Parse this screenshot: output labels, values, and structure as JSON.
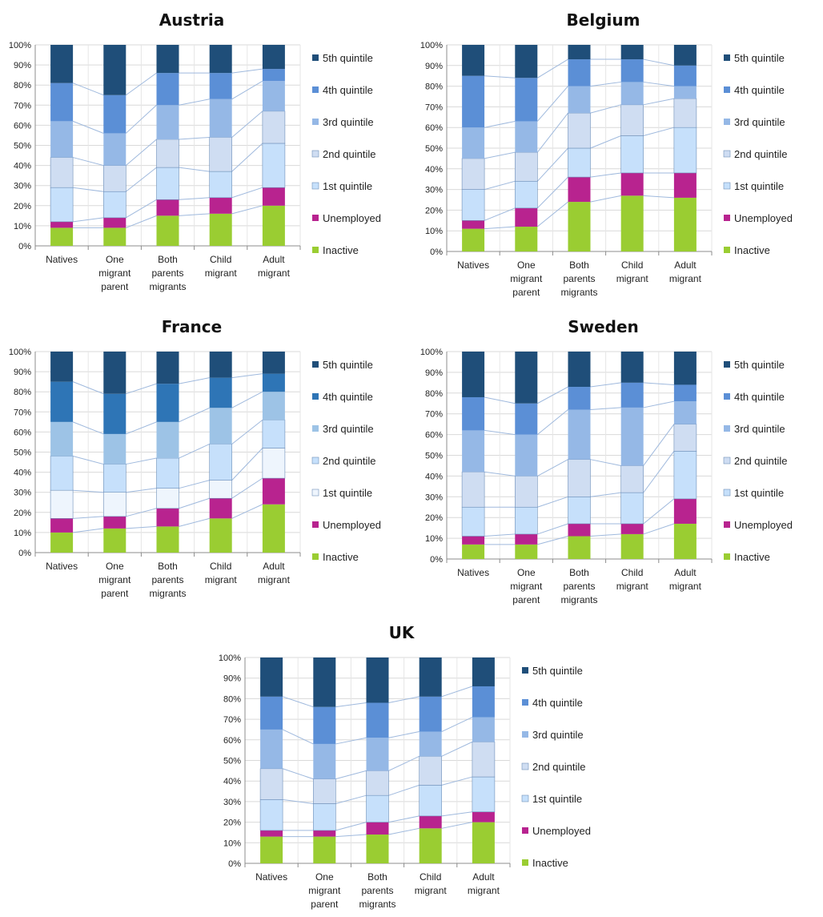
{
  "series_names": [
    "Inactive",
    "Unemployed",
    "1st quintile",
    "2nd quintile",
    "3rd quintile",
    "4th quintile",
    "5th quintile"
  ],
  "categories": [
    [
      "Natives"
    ],
    [
      "One",
      "migrant",
      "parent"
    ],
    [
      "Both",
      "parents",
      "migrants"
    ],
    [
      "Child",
      "migrant"
    ],
    [
      "Adult",
      "migrant"
    ]
  ],
  "y_ticks": [
    "0%",
    "10%",
    "20%",
    "30%",
    "40%",
    "50%",
    "60%",
    "70%",
    "80%",
    "90%",
    "100%"
  ],
  "chart_data": [
    {
      "type": "bar",
      "stacked": true,
      "title": "Austria",
      "ylim": [
        0,
        100
      ],
      "colors": [
        "#9acd32",
        "#b8238f",
        "#c6e0fb",
        "#cfddf2",
        "#95b8e6",
        "#5b8fd6",
        "#1f4e79"
      ],
      "categories": [
        "Natives",
        "One migrant parent",
        "Both parents migrants",
        "Child migrant",
        "Adult migrant"
      ],
      "series": [
        {
          "name": "Inactive",
          "values": [
            9,
            9,
            15,
            16,
            20
          ]
        },
        {
          "name": "Unemployed",
          "values": [
            3,
            5,
            8,
            8,
            9
          ]
        },
        {
          "name": "1st quintile",
          "values": [
            17,
            13,
            16,
            13,
            22
          ]
        },
        {
          "name": "2nd quintile",
          "values": [
            15,
            13,
            14,
            17,
            16
          ]
        },
        {
          "name": "3rd quintile",
          "values": [
            18,
            16,
            17,
            19,
            15
          ]
        },
        {
          "name": "4th quintile",
          "values": [
            19,
            19,
            16,
            13,
            6
          ]
        },
        {
          "name": "5th quintile",
          "values": [
            19,
            25,
            14,
            14,
            12
          ]
        }
      ]
    },
    {
      "type": "bar",
      "stacked": true,
      "title": "Belgium",
      "ylim": [
        0,
        100
      ],
      "colors": [
        "#9acd32",
        "#b8238f",
        "#c6e0fb",
        "#cfddf2",
        "#95b8e6",
        "#5b8fd6",
        "#1f4e79"
      ],
      "categories": [
        "Natives",
        "One migrant parent",
        "Both parents migrants",
        "Child migrant",
        "Adult migrant"
      ],
      "series": [
        {
          "name": "Inactive",
          "values": [
            11,
            12,
            24,
            27,
            26
          ]
        },
        {
          "name": "Unemployed",
          "values": [
            4,
            9,
            12,
            11,
            12
          ]
        },
        {
          "name": "1st quintile",
          "values": [
            15,
            13,
            14,
            18,
            22
          ]
        },
        {
          "name": "2nd quintile",
          "values": [
            15,
            14,
            17,
            15,
            14
          ]
        },
        {
          "name": "3rd quintile",
          "values": [
            15,
            15,
            13,
            11,
            6
          ]
        },
        {
          "name": "4th quintile",
          "values": [
            25,
            21,
            13,
            11,
            10
          ]
        },
        {
          "name": "5th quintile",
          "values": [
            15,
            16,
            7,
            7,
            10
          ]
        }
      ]
    },
    {
      "type": "bar",
      "stacked": true,
      "title": "France",
      "ylim": [
        0,
        100
      ],
      "colors": [
        "#9acd32",
        "#b8238f",
        "#eef5fd",
        "#c6e0fb",
        "#9dc3e6",
        "#2e75b6",
        "#1f4e79"
      ],
      "categories": [
        "Natives",
        "One migrant parent",
        "Both parents migrants",
        "Child migrant",
        "Adult migrant"
      ],
      "series": [
        {
          "name": "Inactive",
          "values": [
            10,
            12,
            13,
            17,
            24
          ]
        },
        {
          "name": "Unemployed",
          "values": [
            7,
            6,
            9,
            10,
            13
          ]
        },
        {
          "name": "1st quintile",
          "values": [
            14,
            12,
            10,
            9,
            15
          ]
        },
        {
          "name": "2nd quintile",
          "values": [
            17,
            14,
            15,
            18,
            14
          ]
        },
        {
          "name": "3rd quintile",
          "values": [
            17,
            15,
            18,
            18,
            14
          ]
        },
        {
          "name": "4th quintile",
          "values": [
            20,
            20,
            19,
            15,
            9
          ]
        },
        {
          "name": "5th quintile",
          "values": [
            15,
            21,
            16,
            13,
            11
          ]
        }
      ]
    },
    {
      "type": "bar",
      "stacked": true,
      "title": "Sweden",
      "ylim": [
        0,
        100
      ],
      "colors": [
        "#9acd32",
        "#b8238f",
        "#c6e0fb",
        "#cfddf2",
        "#95b8e6",
        "#5b8fd6",
        "#1f4e79"
      ],
      "categories": [
        "Natives",
        "One migrant parent",
        "Both parents migrants",
        "Child migrant",
        "Adult migrant"
      ],
      "series": [
        {
          "name": "Inactive",
          "values": [
            7,
            7,
            11,
            12,
            17
          ]
        },
        {
          "name": "Unemployed",
          "values": [
            4,
            5,
            6,
            5,
            12
          ]
        },
        {
          "name": "1st quintile",
          "values": [
            14,
            13,
            13,
            15,
            23
          ]
        },
        {
          "name": "2nd quintile",
          "values": [
            17,
            15,
            18,
            13,
            13
          ]
        },
        {
          "name": "3rd quintile",
          "values": [
            20,
            20,
            24,
            28,
            11
          ]
        },
        {
          "name": "4th quintile",
          "values": [
            16,
            15,
            11,
            12,
            8
          ]
        },
        {
          "name": "5th quintile",
          "values": [
            22,
            25,
            17,
            15,
            16
          ]
        }
      ]
    },
    {
      "type": "bar",
      "stacked": true,
      "title": "UK",
      "ylim": [
        0,
        100
      ],
      "colors": [
        "#9acd32",
        "#b8238f",
        "#c6e0fb",
        "#cfddf2",
        "#95b8e6",
        "#5b8fd6",
        "#1f4e79"
      ],
      "categories": [
        "Natives",
        "One migrant parent",
        "Both parents migrants",
        "Child migrant",
        "Adult migrant"
      ],
      "series": [
        {
          "name": "Inactive",
          "values": [
            13,
            13,
            14,
            17,
            20
          ]
        },
        {
          "name": "Unemployed",
          "values": [
            3,
            3,
            6,
            6,
            5
          ]
        },
        {
          "name": "1st quintile",
          "values": [
            15,
            13,
            13,
            15,
            17
          ]
        },
        {
          "name": "2nd quintile",
          "values": [
            15,
            12,
            12,
            14,
            17
          ]
        },
        {
          "name": "3rd quintile",
          "values": [
            19,
            17,
            16,
            12,
            12
          ]
        },
        {
          "name": "4th quintile",
          "values": [
            16,
            18,
            17,
            17,
            15
          ]
        },
        {
          "name": "5th quintile",
          "values": [
            19,
            24,
            22,
            19,
            14
          ]
        }
      ]
    }
  ]
}
